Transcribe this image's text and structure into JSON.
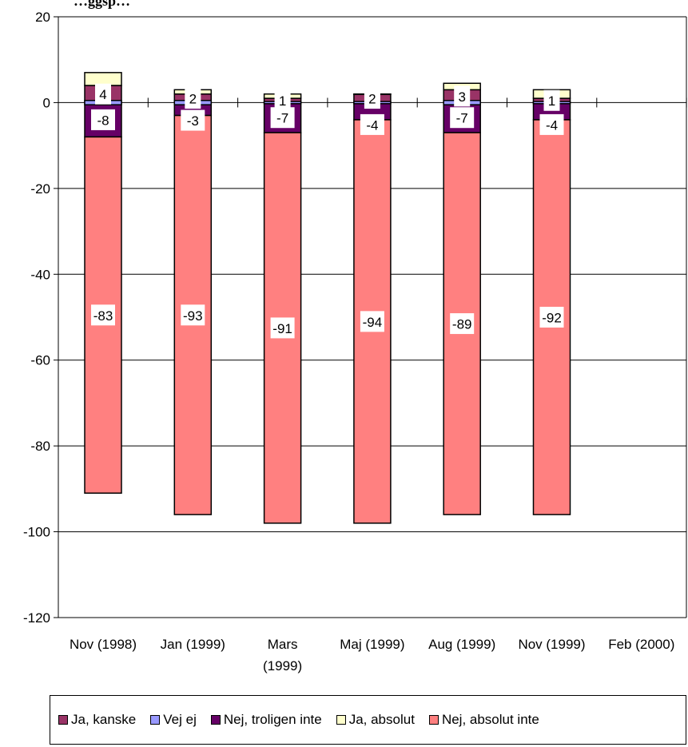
{
  "chart_data": {
    "type": "bar",
    "stacked": true,
    "title": "",
    "title_fragment": "…ggsp…",
    "xlabel": "",
    "ylabel": "",
    "ylim": [
      -120,
      20
    ],
    "yticks": [
      20,
      0,
      -20,
      -40,
      -60,
      -80,
      -100,
      -120
    ],
    "grid": true,
    "legend_position": "bottom",
    "categories": [
      {
        "line1": "Nov (1998)",
        "line2": ""
      },
      {
        "line1": "Jan (1999)",
        "line2": ""
      },
      {
        "line1": "Mars",
        "line2": "(1999)"
      },
      {
        "line1": "Maj (1999)",
        "line2": ""
      },
      {
        "line1": "Aug (1999)",
        "line2": ""
      },
      {
        "line1": "Nov (1999)",
        "line2": ""
      },
      {
        "line1": "Feb (2000)",
        "line2": ""
      }
    ],
    "series": [
      {
        "name": "Ja, kanske",
        "color": "#993366",
        "values": [
          4,
          2,
          1,
          2,
          3,
          1,
          null
        ],
        "direction": "positive",
        "labels": [
          "4",
          "2",
          "1",
          "2",
          "3",
          "1",
          ""
        ]
      },
      {
        "name": "Vej ej",
        "color": "#9999ff",
        "values": [
          1,
          1,
          0.5,
          0.5,
          1,
          0.5,
          null
        ],
        "direction": "both",
        "labels": [
          "",
          "",
          "",
          "",
          "",
          "",
          ""
        ]
      },
      {
        "name": "Nej, troligen inte",
        "color": "#660066",
        "values": [
          -8,
          -3,
          -7,
          -4,
          -7,
          -4,
          null
        ],
        "direction": "negative",
        "labels": [
          "-8",
          "-3",
          "-7",
          "-4",
          "-7",
          "-4",
          ""
        ]
      },
      {
        "name": "Ja, absolut",
        "color": "#ffffcc",
        "values": [
          3,
          1,
          1,
          0,
          1.5,
          2,
          null
        ],
        "direction": "positive",
        "labels": [
          "",
          "",
          "",
          "",
          "",
          "",
          ""
        ]
      },
      {
        "name": "Nej, absolut inte",
        "color": "#ff8080",
        "values": [
          -83,
          -93,
          -91,
          -94,
          -89,
          -92,
          null
        ],
        "direction": "negative",
        "labels": [
          "-83",
          "-93",
          "-91",
          "-94",
          "-89",
          "-92",
          ""
        ]
      }
    ]
  },
  "legend": {
    "items": [
      {
        "label": "Ja, kanske",
        "color": "#993366"
      },
      {
        "label": "Vej ej",
        "color": "#9999ff"
      },
      {
        "label": "Nej, troligen inte",
        "color": "#660066"
      },
      {
        "label": "Ja, absolut",
        "color": "#ffffcc"
      },
      {
        "label": "Nej, absolut inte",
        "color": "#ff8080"
      }
    ]
  }
}
